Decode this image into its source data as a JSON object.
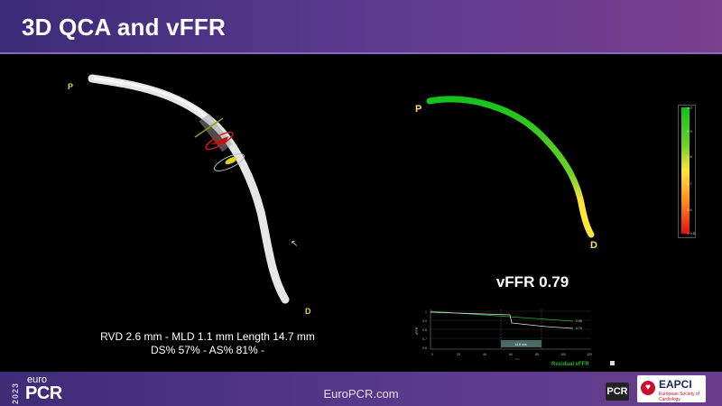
{
  "header": {
    "title": "3D QCA and vFFR"
  },
  "qca": {
    "proximal_label": "P",
    "distal_label": "D",
    "line1": "RVD 2.6 mm - MLD 1.1 mm  Length 14.7 mm",
    "line2": "DS% 57% - AS% 81% -"
  },
  "vffr_view": {
    "proximal_label": "P",
    "distal_label": "D",
    "result": "vFFR 0.79",
    "colors": {
      "high": "#13c21d",
      "mid": "#ffe43a",
      "low": "#e01010"
    }
  },
  "color_scale": {
    "ticks": [
      "1.0",
      "0.9",
      "0.8",
      "0.7",
      "0.6",
      "< 0.5"
    ]
  },
  "mini_chart": {
    "values": [
      "0.98",
      "0.79"
    ],
    "x_ticks": [
      "0",
      "20",
      "40",
      "60",
      "80",
      "100",
      "120"
    ],
    "y_ticks": [
      "1",
      "0.9",
      "0.8",
      "0.7",
      "0.6"
    ],
    "segment_label": "14.8 mm",
    "x_label": "mm",
    "y_label": "vFFR",
    "footer_label": "Residual vFFR"
  },
  "footer": {
    "url": "EuroPCR.com",
    "logo_year": "2023",
    "logo_euro": "euro",
    "logo_pcr": "PCR",
    "pcr_badge": "PCR",
    "eapci": "EAPCI",
    "eapci_sub": "European Society of Cardiology"
  }
}
